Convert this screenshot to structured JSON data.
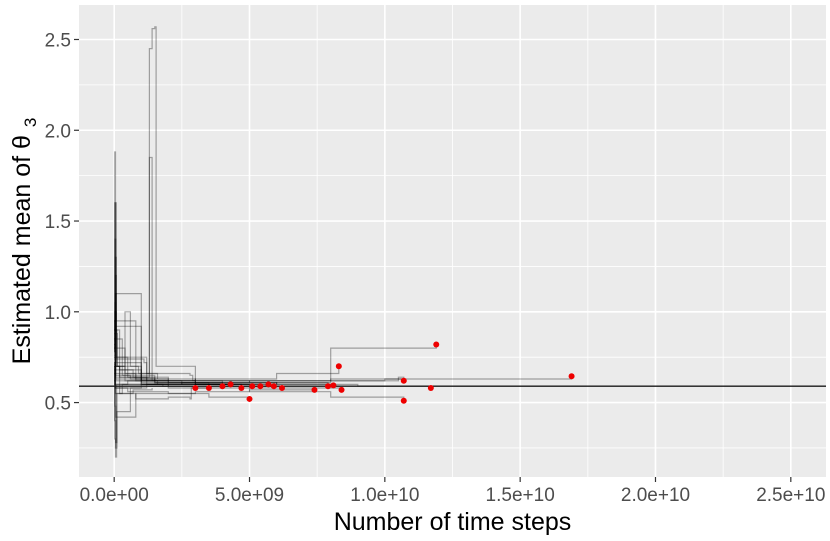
{
  "chart_data": {
    "type": "line",
    "title": "",
    "xlabel": "Number of time steps",
    "ylabel": "Estimated mean of",
    "ylabel_symbol": "θ",
    "ylabel_subscript": "3",
    "xlim": [
      -1300000000.0,
      26300000000.0
    ],
    "ylim": [
      0.09,
      2.69
    ],
    "x_ticks": [
      0,
      5000000000.0,
      10000000000.0,
      15000000000.0,
      20000000000.0,
      25000000000.0
    ],
    "x_tick_labels": [
      "0.0e+00",
      "5.0e+09",
      "1.0e+10",
      "1.5e+10",
      "2.0e+10",
      "2.5e+10"
    ],
    "y_ticks": [
      0.5,
      1.0,
      1.5,
      2.0,
      2.5
    ],
    "y_tick_labels": [
      "0.5",
      "1.0",
      "1.5",
      "2.0",
      "2.5"
    ],
    "grid": true,
    "legend": "none",
    "reference_line": {
      "y": 0.59,
      "color": "#1a1a1a"
    },
    "colors": {
      "panel": "#ebebeb",
      "grid": "#ffffff",
      "trace": "#000000",
      "endpoint": "#ee0000"
    },
    "series": [
      {
        "values": [
          [
            0,
            0.75
          ],
          [
            20000000.0,
            0.95
          ],
          [
            50000000.0,
            1.1
          ],
          [
            80000000.0,
            0.88
          ],
          [
            120000000.0,
            0.7
          ],
          [
            300000000.0,
            0.65
          ],
          [
            600000000.0,
            0.63
          ],
          [
            1500000000.0,
            0.61
          ],
          [
            3000000000.0,
            0.6
          ],
          [
            6000000000.0,
            0.61
          ],
          [
            8000000000.0,
            0.8
          ],
          [
            11900000000.0,
            0.82
          ]
        ],
        "end": [
          11900000000.0,
          0.82
        ]
      },
      {
        "values": [
          [
            0,
            0.8
          ],
          [
            30000000.0,
            1.05
          ],
          [
            60000000.0,
            0.9
          ],
          [
            100000000.0,
            0.7
          ],
          [
            400000000.0,
            0.62
          ],
          [
            1000000000.0,
            0.6
          ],
          [
            2500000000.0,
            0.61
          ],
          [
            5000000000.0,
            0.62
          ],
          [
            10000000000.0,
            0.63
          ],
          [
            16900000000.0,
            0.645
          ]
        ],
        "end": [
          16900000000.0,
          0.645
        ]
      },
      {
        "values": [
          [
            0,
            0.78
          ],
          [
            20000000.0,
            0.85
          ],
          [
            50000000.0,
            0.7
          ],
          [
            200000000.0,
            0.64
          ],
          [
            1000000000.0,
            0.62
          ],
          [
            3000000000.0,
            0.63
          ],
          [
            6000000000.0,
            0.66
          ],
          [
            8300000000.0,
            0.7
          ]
        ],
        "end": [
          8300000000.0,
          0.7
        ]
      },
      {
        "values": [
          [
            0,
            0.7
          ],
          [
            20000000.0,
            0.6
          ],
          [
            50000000.0,
            0.55
          ],
          [
            300000000.0,
            0.6
          ],
          [
            2000000000.0,
            0.58
          ],
          [
            5000000000.0,
            0.56
          ],
          [
            8000000000.0,
            0.53
          ],
          [
            10700000000.0,
            0.51
          ]
        ],
        "end": [
          10700000000.0,
          0.51
        ]
      },
      {
        "values": [
          [
            0,
            0.72
          ],
          [
            20000000.0,
            0.62
          ],
          [
            40000000.0,
            0.58
          ],
          [
            500000000.0,
            0.56
          ],
          [
            2000000000.0,
            0.55
          ],
          [
            3500000000.0,
            0.53
          ],
          [
            5000000000.0,
            0.52
          ]
        ],
        "end": [
          5000000000.0,
          0.52
        ]
      },
      {
        "values": [
          [
            0,
            0.9
          ],
          [
            40000000.0,
            1.2
          ],
          [
            80000000.0,
            0.75
          ],
          [
            500000000.0,
            0.64
          ],
          [
            1300000000.0,
            2.45
          ],
          [
            1400000000.0,
            2.56
          ],
          [
            1500000000.0,
            2.57
          ],
          [
            1550000000.0,
            0.7
          ],
          [
            3000000000.0,
            0.62
          ],
          [
            5000000000.0,
            0.62
          ],
          [
            8000000000.0,
            0.63
          ],
          [
            10700000000.0,
            0.62
          ]
        ],
        "end": [
          10700000000.0,
          0.62
        ]
      },
      {
        "values": [
          [
            0,
            0.85
          ],
          [
            30000000.0,
            1.6
          ],
          [
            60000000.0,
            0.8
          ],
          [
            400000000.0,
            0.66
          ],
          [
            1300000000.0,
            1.85
          ],
          [
            1380000000.0,
            1.85
          ],
          [
            1400000000.0,
            0.62
          ],
          [
            3000000000.0,
            0.61
          ],
          [
            6000000000.0,
            0.6
          ],
          [
            9000000000.0,
            0.59
          ],
          [
            11700000000.0,
            0.58
          ]
        ],
        "end": [
          11700000000.0,
          0.58
        ]
      },
      {
        "values": [
          [
            0,
            0.68
          ],
          [
            50000000.0,
            0.6
          ],
          [
            600000000.0,
            0.6
          ],
          [
            1800000000.0,
            0.59
          ],
          [
            3000000000.0,
            0.58
          ]
        ],
        "end": [
          3000000000.0,
          0.58
        ]
      },
      {
        "values": [
          [
            0,
            0.74
          ],
          [
            50000000.0,
            0.66
          ],
          [
            800000000.0,
            0.62
          ],
          [
            2000000000.0,
            0.6
          ],
          [
            3500000000.0,
            0.58
          ]
        ],
        "end": [
          3500000000.0,
          0.58
        ]
      },
      {
        "values": [
          [
            0,
            0.82
          ],
          [
            40000000.0,
            1.3
          ],
          [
            80000000.0,
            0.72
          ],
          [
            1000000000.0,
            0.62
          ],
          [
            2500000000.0,
            0.6
          ],
          [
            4000000000.0,
            0.59
          ]
        ],
        "end": [
          4000000000.0,
          0.59
        ]
      },
      {
        "values": [
          [
            0,
            0.66
          ],
          [
            40000000.0,
            0.58
          ],
          [
            1000000000.0,
            0.6
          ],
          [
            3000000000.0,
            0.6
          ],
          [
            4300000000.0,
            0.6
          ]
        ],
        "end": [
          4300000000.0,
          0.6
        ]
      },
      {
        "values": [
          [
            0,
            0.88
          ],
          [
            40000000.0,
            0.75
          ],
          [
            1200000000.0,
            0.62
          ],
          [
            3000000000.0,
            0.6
          ],
          [
            4700000000.0,
            0.58
          ]
        ],
        "end": [
          4700000000.0,
          0.58
        ]
      },
      {
        "values": [
          [
            0,
            0.76
          ],
          [
            30000000.0,
            0.95
          ],
          [
            800000000.0,
            0.63
          ],
          [
            3000000000.0,
            0.6
          ],
          [
            5100000000.0,
            0.59
          ]
        ],
        "end": [
          5100000000.0,
          0.59
        ]
      },
      {
        "values": [
          [
            0,
            0.72
          ],
          [
            60000000.0,
            0.62
          ],
          [
            1500000000.0,
            0.61
          ],
          [
            3500000000.0,
            0.6
          ],
          [
            5400000000.0,
            0.59
          ]
        ],
        "end": [
          5400000000.0,
          0.59
        ]
      },
      {
        "values": [
          [
            0,
            0.79
          ],
          [
            50000000.0,
            0.68
          ],
          [
            1000000000.0,
            0.61
          ],
          [
            4000000000.0,
            0.6
          ],
          [
            5700000000.0,
            0.6
          ]
        ],
        "end": [
          5700000000.0,
          0.6
        ]
      },
      {
        "values": [
          [
            0,
            0.7
          ],
          [
            50000000.0,
            0.64
          ],
          [
            1200000000.0,
            0.6
          ],
          [
            4000000000.0,
            0.59
          ],
          [
            5900000000.0,
            0.59
          ]
        ],
        "end": [
          5900000000.0,
          0.59
        ]
      },
      {
        "values": [
          [
            0,
            0.84
          ],
          [
            40000000.0,
            1.1
          ],
          [
            1000000000.0,
            0.62
          ],
          [
            4000000000.0,
            0.59
          ],
          [
            6200000000.0,
            0.58
          ]
        ],
        "end": [
          6200000000.0,
          0.58
        ]
      },
      {
        "values": [
          [
            0,
            0.62
          ],
          [
            30000000.0,
            0.48
          ],
          [
            60000000.0,
            0.42
          ],
          [
            800000000.0,
            0.55
          ],
          [
            3000000000.0,
            0.56
          ],
          [
            5000000000.0,
            0.57
          ],
          [
            7400000000.0,
            0.57
          ]
        ],
        "end": [
          7400000000.0,
          0.57
        ]
      },
      {
        "values": [
          [
            0,
            0.75
          ],
          [
            50000000.0,
            0.65
          ],
          [
            1500000000.0,
            0.62
          ],
          [
            5000000000.0,
            0.61
          ],
          [
            7900000000.0,
            0.59
          ]
        ],
        "end": [
          7900000000.0,
          0.59
        ]
      },
      {
        "values": [
          [
            0,
            0.71
          ],
          [
            50000000.0,
            0.63
          ],
          [
            2000000000.0,
            0.61
          ],
          [
            6000000000.0,
            0.6
          ],
          [
            8100000000.0,
            0.595
          ]
        ],
        "end": [
          8100000000.0,
          0.595
        ]
      },
      {
        "values": [
          [
            0,
            0.8
          ],
          [
            40000000.0,
            0.92
          ],
          [
            1000000000.0,
            0.6
          ],
          [
            5000000000.0,
            0.58
          ],
          [
            8400000000.0,
            0.57
          ]
        ],
        "end": [
          8400000000.0,
          0.57
        ]
      },
      {
        "values": [
          [
            0,
            0.7
          ],
          [
            20000000.0,
            0.3
          ],
          [
            50000000.0,
            0.25
          ],
          [
            100000000.0,
            0.45
          ],
          [
            600000000.0,
            0.58
          ],
          [
            1200000000.0,
            0.6
          ],
          [
            2000000000.0,
            0.59
          ]
        ],
        "end": null
      },
      {
        "values": [
          [
            0,
            0.95
          ],
          [
            30000000.0,
            1.0
          ],
          [
            50000000.0,
            0.2
          ],
          [
            90000000.0,
            0.6
          ],
          [
            500000000.0,
            0.62
          ],
          [
            1600000000.0,
            0.6
          ]
        ],
        "end": null
      },
      {
        "values": [
          [
            0,
            0.85
          ],
          [
            20000000.0,
            1.88
          ],
          [
            50000000.0,
            0.9
          ],
          [
            200000000.0,
            0.68
          ],
          [
            700000000.0,
            0.64
          ],
          [
            1500000000.0,
            0.62
          ]
        ],
        "end": null
      },
      {
        "values": [
          [
            0,
            0.9
          ],
          [
            30000000.0,
            1.4
          ],
          [
            60000000.0,
            0.7
          ],
          [
            400000000.0,
            1.0
          ],
          [
            600000000.0,
            0.7
          ],
          [
            900000000.0,
            0.66
          ],
          [
            1600000000.0,
            0.63
          ]
        ],
        "end": null
      },
      {
        "values": [
          [
            0,
            0.75
          ],
          [
            20000000.0,
            0.4
          ],
          [
            60000000.0,
            0.28
          ],
          [
            100000000.0,
            0.55
          ],
          [
            700000000.0,
            0.57
          ],
          [
            1400000000.0,
            0.58
          ]
        ],
        "end": null
      },
      {
        "values": [
          [
            0,
            0.8
          ],
          [
            30000000.0,
            1.6
          ],
          [
            70000000.0,
            0.85
          ],
          [
            300000000.0,
            0.7
          ],
          [
            1000000000.0,
            0.64
          ],
          [
            2000000000.0,
            0.62
          ]
        ],
        "end": null
      },
      {
        "values": [
          [
            0,
            0.82
          ],
          [
            30000000.0,
            0.7
          ],
          [
            200000000.0,
            0.55
          ],
          [
            800000000.0,
            0.52
          ],
          [
            2000000000.0,
            0.53
          ],
          [
            2800000000.0,
            0.52
          ],
          [
            2850000000.0,
            0.58
          ],
          [
            3500000000.0,
            0.58
          ]
        ],
        "end": null
      },
      {
        "values": [
          [
            0,
            0.78
          ],
          [
            30000000.0,
            1.0
          ],
          [
            80000000.0,
            0.74
          ],
          [
            1100000000.0,
            0.72
          ],
          [
            1200000000.0,
            0.66
          ],
          [
            2800000000.0,
            0.65
          ],
          [
            2900000000.0,
            0.62
          ],
          [
            6000000000.0,
            0.62
          ],
          [
            10500000000.0,
            0.64
          ],
          [
            10700000000.0,
            0.63
          ]
        ],
        "end": null
      }
    ]
  }
}
